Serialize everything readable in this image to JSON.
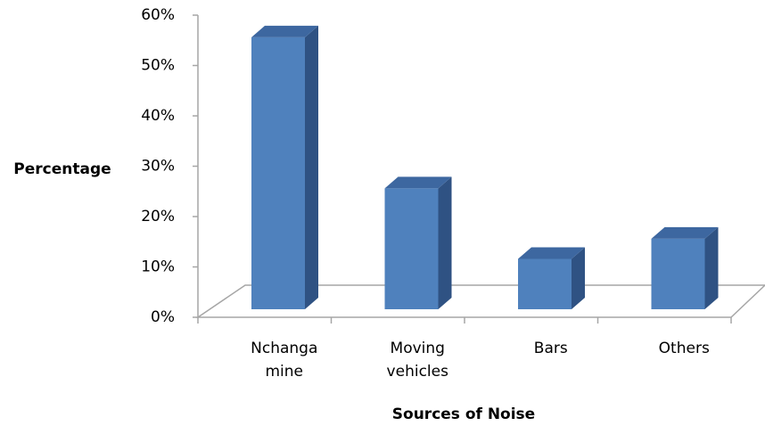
{
  "chart_data": {
    "type": "bar3d",
    "x_label": "Sources of Noise",
    "y_label": "Percentage",
    "categories": [
      "Nchanga mine",
      "Moving vehicles",
      "Bars",
      "Others"
    ],
    "values": [
      54,
      24,
      10,
      14
    ],
    "color": "#4f81bd",
    "ylim": [
      0,
      60
    ],
    "yticks": [
      {
        "value": 0,
        "label": "0%"
      },
      {
        "value": 10,
        "label": "10%"
      },
      {
        "value": 20,
        "label": "20%"
      },
      {
        "value": 30,
        "label": "30%"
      },
      {
        "value": 40,
        "label": "40%"
      },
      {
        "value": 50,
        "label": "50%"
      },
      {
        "value": 60,
        "label": "60%"
      }
    ]
  }
}
